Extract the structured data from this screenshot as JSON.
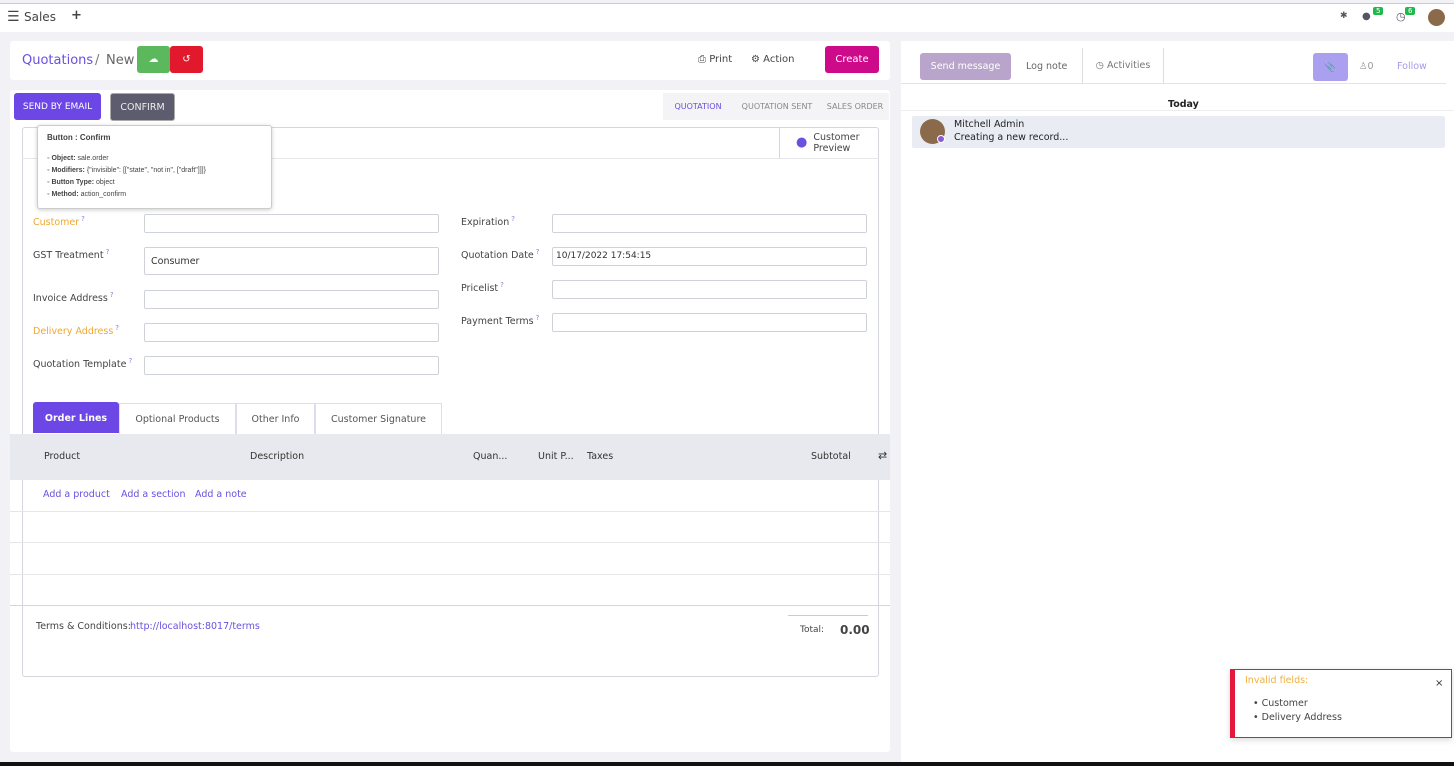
{
  "topbar": {
    "app": "Sales",
    "messages_count": "5",
    "activities_count": "6"
  },
  "breadcrumb": {
    "parent": "Quotations",
    "current": "New"
  },
  "toolbar": {
    "print": "Print",
    "action": "Action",
    "create": "Create"
  },
  "statusbar": {
    "send_email": "SEND BY EMAIL",
    "confirm": "CONFIRM",
    "stages": [
      "QUOTATION",
      "QUOTATION SENT",
      "SALES ORDER"
    ]
  },
  "tooltip": {
    "title": "Button : Confirm",
    "items": [
      {
        "k": "Object:",
        "v": "sale.order"
      },
      {
        "k": "Modifiers:",
        "v": "{\"invisible\": [[\"state\", \"not in\", [\"draft\"]]]}"
      },
      {
        "k": "Button Type:",
        "v": "object"
      },
      {
        "k": "Method:",
        "v": "action_confirm"
      }
    ]
  },
  "customer_preview": "Customer Preview",
  "form": {
    "left": [
      {
        "label": "Customer",
        "value": "",
        "required": true
      },
      {
        "label": "GST Treatment",
        "value": "Consumer",
        "required": false
      },
      {
        "label": "Invoice Address",
        "value": "",
        "required": false
      },
      {
        "label": "Delivery Address",
        "value": "",
        "required": true
      },
      {
        "label": "Quotation Template",
        "value": "",
        "required": false
      }
    ],
    "right": [
      {
        "label": "Expiration",
        "value": ""
      },
      {
        "label": "Quotation Date",
        "value": "10/17/2022 17:54:15"
      },
      {
        "label": "Pricelist",
        "value": ""
      },
      {
        "label": "Payment Terms",
        "value": ""
      }
    ]
  },
  "tabs": [
    "Order Lines",
    "Optional Products",
    "Other Info",
    "Customer Signature"
  ],
  "table": {
    "columns": [
      "Product",
      "Description",
      "Quan...",
      "Unit P...",
      "Taxes",
      "Subtotal"
    ],
    "add_product": "Add a product",
    "add_section": "Add a section",
    "add_note": "Add a note"
  },
  "footer": {
    "terms_label": "Terms & Conditions:",
    "terms_link": "http://localhost:8017/terms",
    "total_label": "Total:",
    "total_value": "0.00"
  },
  "chatter": {
    "send_message": "Send message",
    "log_note": "Log note",
    "activities": "Activities",
    "followers": "0",
    "follow": "Follow",
    "date": "Today",
    "author": "Mitchell Admin",
    "message": "Creating a new record..."
  },
  "notification": {
    "title": "Invalid fields:",
    "items": [
      "Customer",
      "Delivery Address"
    ]
  },
  "colors": {
    "primary": "#6c47e6",
    "create": "#cc0a8a",
    "save": "#5cb85c",
    "discard": "#e2182d",
    "required": "#f0a830"
  }
}
